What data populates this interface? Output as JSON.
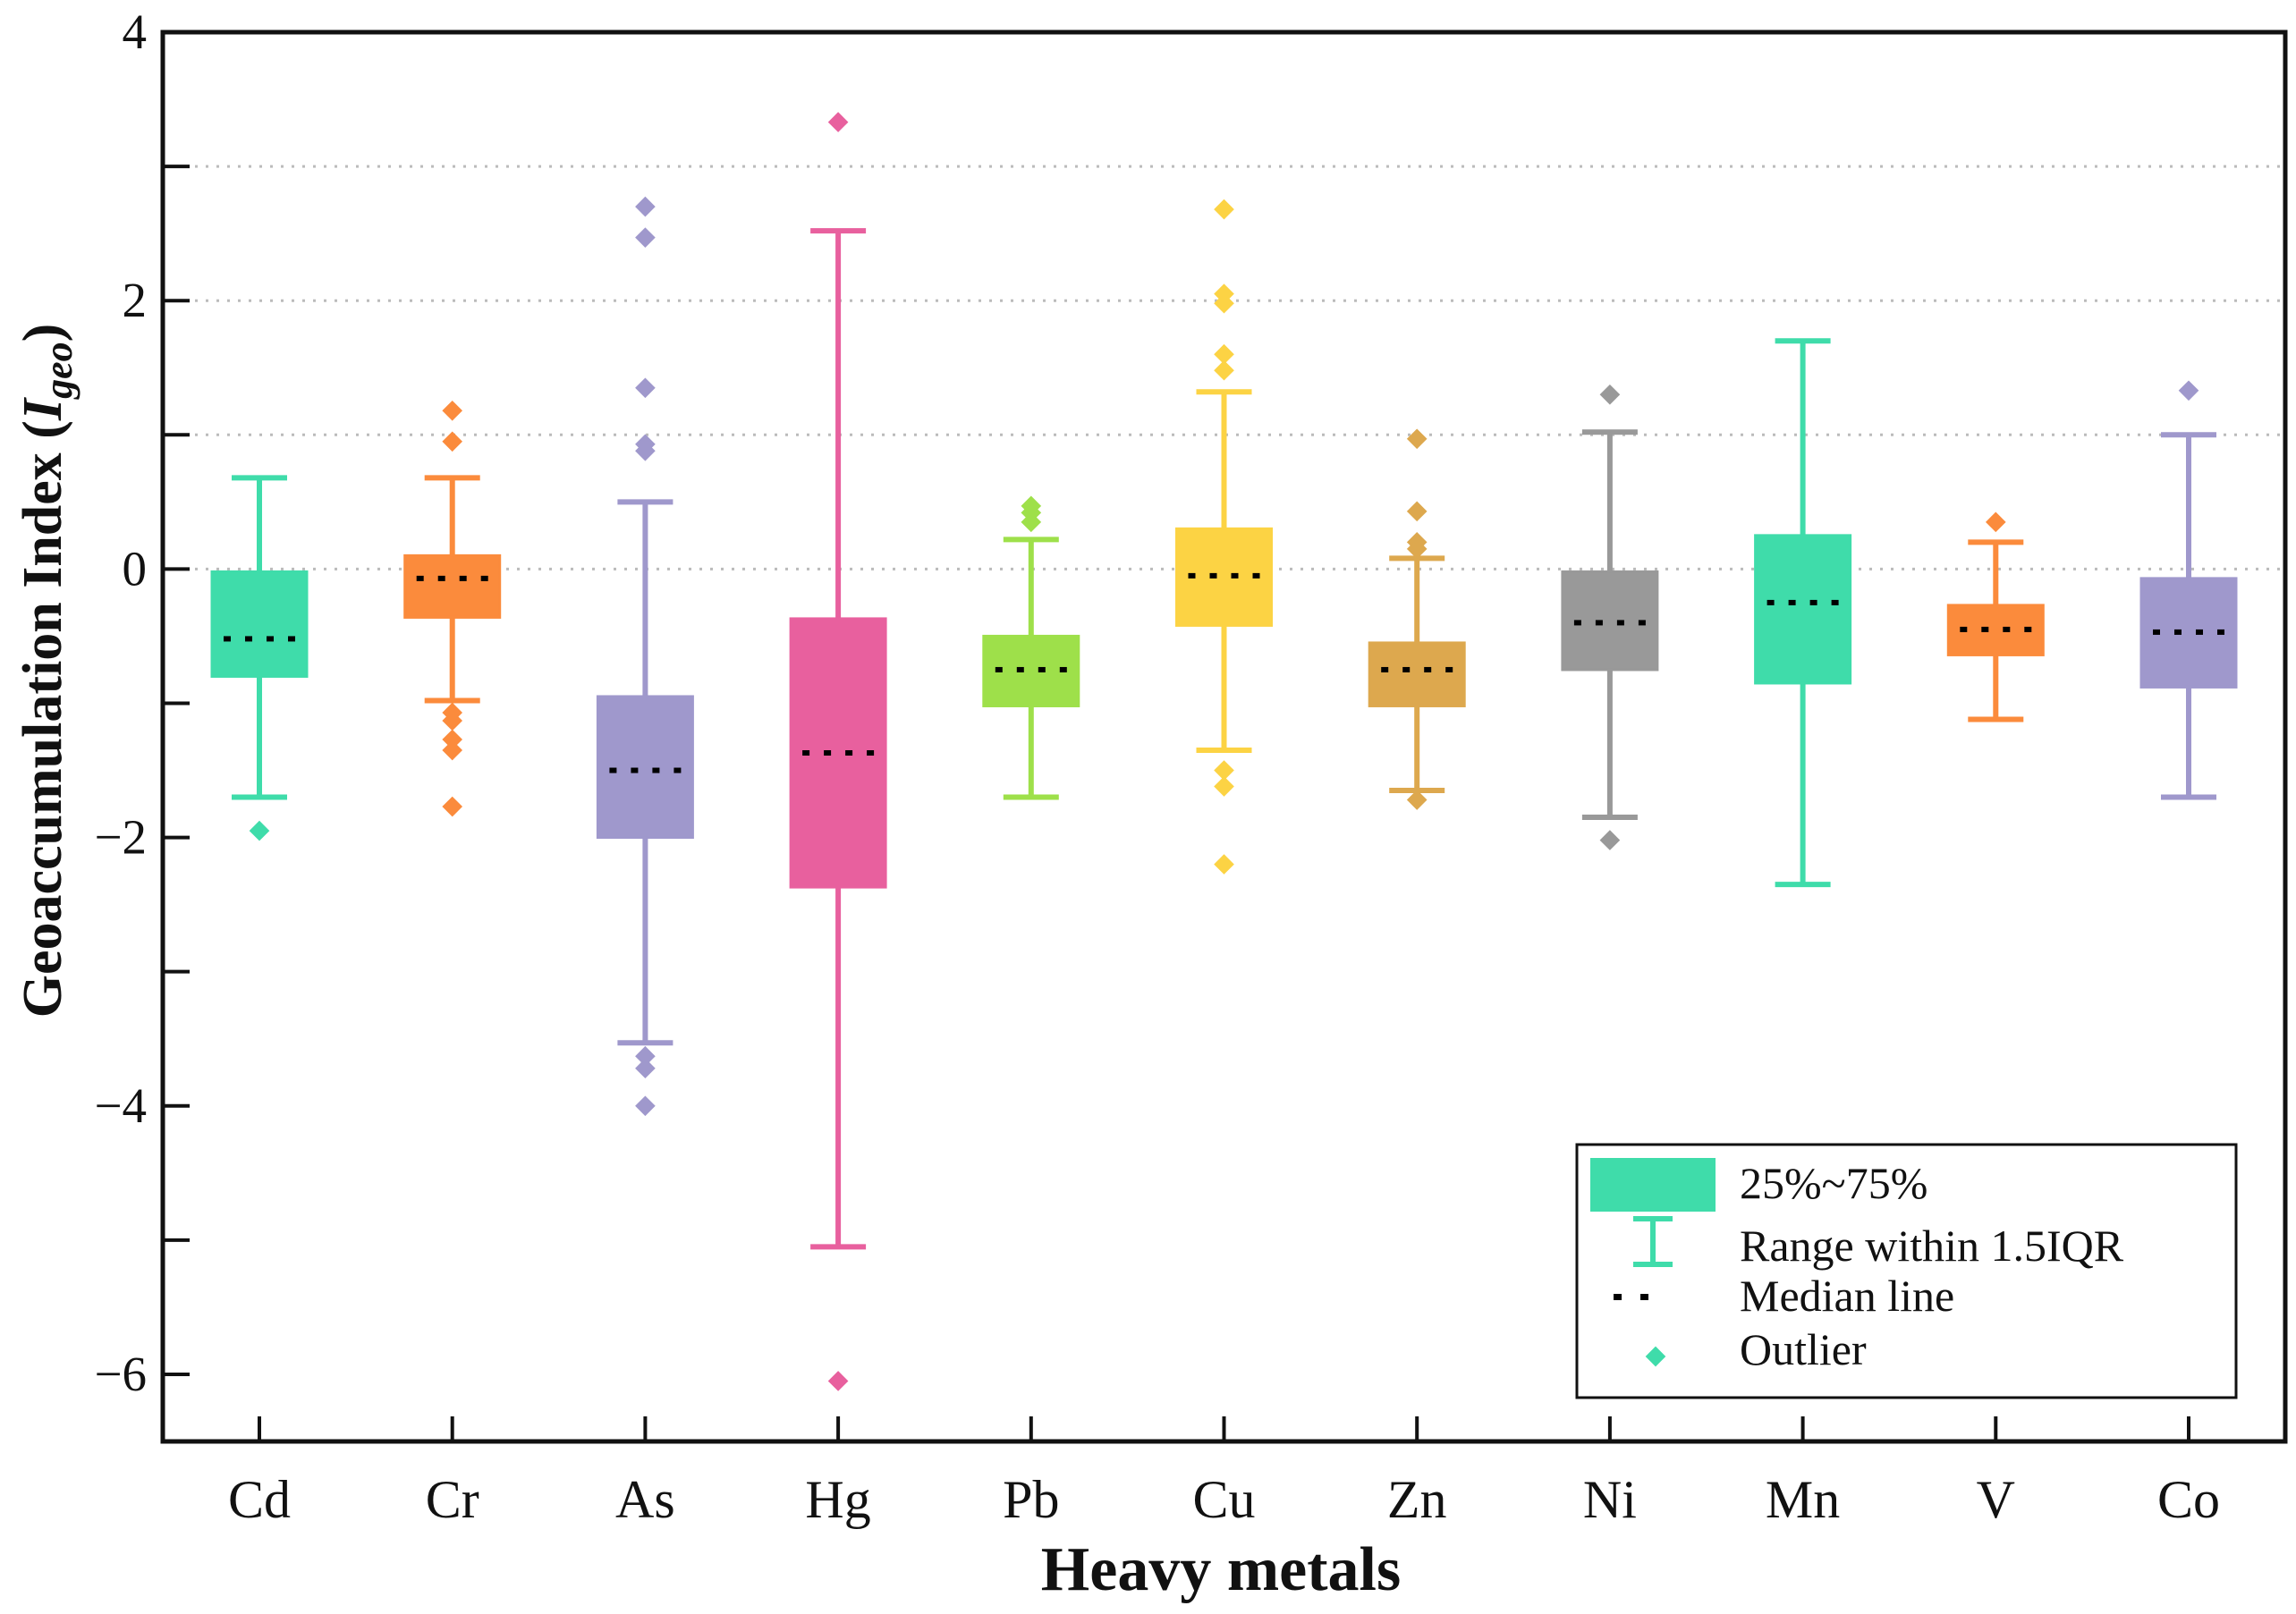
{
  "chart_data": {
    "type": "box",
    "xlabel": "Heavy metals",
    "ylabel": "Geoaccumulation Index (",
    "ylabel_symbol": "I",
    "ylabel_subscript": "geo",
    "ylabel_close": ")",
    "ylim": [
      -6.5,
      4
    ],
    "yticks": [
      -6,
      -5,
      -4,
      -3,
      -2,
      -1,
      0,
      1,
      2,
      3,
      4
    ],
    "ytick_labels": [
      "−6",
      "",
      "−4",
      "",
      "−2",
      "",
      "0",
      "",
      "2",
      "",
      "4"
    ],
    "grid": "horizontal dotted at 0, 1, 2, 3",
    "legend_position": "bottom-right",
    "legend": {
      "box": "25%~75%",
      "whisker": "Range within 1.5IQR",
      "median": "Median line",
      "outlier": "Outlier"
    },
    "series": [
      {
        "category": "Cd",
        "color": "#3fdcaa",
        "q1": -0.8,
        "median": -0.52,
        "q3": -0.02,
        "whisker_low": -1.7,
        "whisker_high": 0.68,
        "outliers": [
          -1.95
        ]
      },
      {
        "category": "Cr",
        "color": "#fb8b3c",
        "q1": -0.36,
        "median": -0.07,
        "q3": 0.1,
        "whisker_low": -0.98,
        "whisker_high": 0.68,
        "outliers": [
          1.18,
          0.95,
          -1.07,
          -1.13,
          -1.27,
          -1.35,
          -1.77
        ]
      },
      {
        "category": "As",
        "color": "#9f98cc",
        "q1": -2.0,
        "median": -1.5,
        "q3": -0.95,
        "whisker_low": -3.53,
        "whisker_high": 0.5,
        "outliers": [
          2.7,
          2.47,
          1.35,
          0.93,
          0.88,
          -3.63,
          -3.72,
          -4.0
        ]
      },
      {
        "category": "Hg",
        "color": "#e8609e",
        "q1": -2.37,
        "median": -1.37,
        "q3": -0.37,
        "whisker_low": -5.05,
        "whisker_high": 2.52,
        "outliers": [
          3.33,
          -6.05
        ]
      },
      {
        "category": "Pb",
        "color": "#9ee04a",
        "q1": -1.02,
        "median": -0.75,
        "q3": -0.5,
        "whisker_low": -1.7,
        "whisker_high": 0.22,
        "outliers": [
          0.47,
          0.42,
          0.35
        ]
      },
      {
        "category": "Cu",
        "color": "#fcd344",
        "q1": -0.42,
        "median": -0.05,
        "q3": 0.3,
        "whisker_low": -1.35,
        "whisker_high": 1.32,
        "outliers": [
          2.68,
          2.05,
          1.98,
          1.6,
          1.48,
          -1.5,
          -1.62,
          -2.2
        ]
      },
      {
        "category": "Zn",
        "color": "#dda84e",
        "q1": -1.02,
        "median": -0.75,
        "q3": -0.55,
        "whisker_low": -1.65,
        "whisker_high": 0.08,
        "outliers": [
          0.97,
          0.43,
          0.2,
          0.15,
          -1.72
        ]
      },
      {
        "category": "Ni",
        "color": "#999999",
        "q1": -0.75,
        "median": -0.4,
        "q3": -0.02,
        "whisker_low": -1.85,
        "whisker_high": 1.02,
        "outliers": [
          1.3,
          -2.02
        ]
      },
      {
        "category": "Mn",
        "color": "#3fdcaa",
        "q1": -0.85,
        "median": -0.25,
        "q3": 0.25,
        "whisker_low": -2.35,
        "whisker_high": 1.7,
        "outliers": []
      },
      {
        "category": "V",
        "color": "#fb8b3c",
        "q1": -0.64,
        "median": -0.45,
        "q3": -0.27,
        "whisker_low": -1.12,
        "whisker_high": 0.2,
        "outliers": [
          0.35
        ]
      },
      {
        "category": "Co",
        "color": "#9f98cc",
        "q1": -0.88,
        "median": -0.47,
        "q3": -0.07,
        "whisker_low": -1.7,
        "whisker_high": 1.0,
        "outliers": [
          1.33
        ]
      }
    ]
  },
  "colors": {
    "legend_box": "#3fdcaa",
    "axis": "#111111",
    "grid": "#bbbbbb",
    "median": "#000000"
  }
}
